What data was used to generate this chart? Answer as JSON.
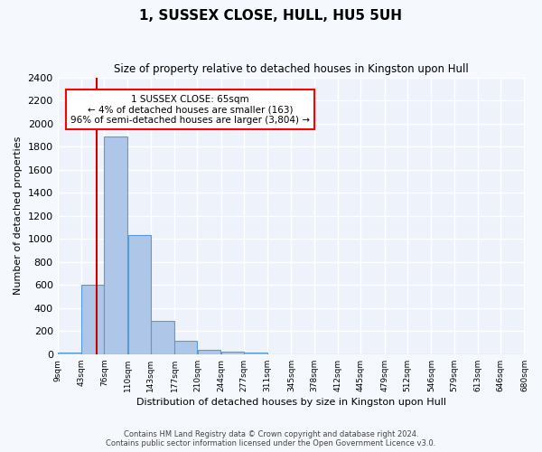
{
  "title": "1, SUSSEX CLOSE, HULL, HU5 5UH",
  "subtitle": "Size of property relative to detached houses in Kingston upon Hull",
  "xlabel": "Distribution of detached houses by size in Kingston upon Hull",
  "ylabel": "Number of detached properties",
  "footer_line1": "Contains HM Land Registry data © Crown copyright and database right 2024.",
  "footer_line2": "Contains public sector information licensed under the Open Government Licence v3.0.",
  "bar_color": "#aec6e8",
  "bar_edge_color": "#5b9bd5",
  "background_color": "#eef2fa",
  "grid_color": "#ffffff",
  "annotation_text": "1 SUSSEX CLOSE: 65sqm\n← 4% of detached houses are smaller (163)\n96% of semi-detached houses are larger (3,804) →",
  "property_line_x": 65,
  "property_line_color": "#cc0000",
  "bin_edges": [
    9,
    43,
    76,
    110,
    143,
    177,
    210,
    244,
    277,
    311,
    345,
    378,
    412,
    445,
    479,
    512,
    546,
    579,
    613,
    646,
    680
  ],
  "bin_labels": [
    "9sqm",
    "43sqm",
    "76sqm",
    "110sqm",
    "143sqm",
    "177sqm",
    "210sqm",
    "244sqm",
    "277sqm",
    "311sqm",
    "345sqm",
    "378sqm",
    "412sqm",
    "445sqm",
    "479sqm",
    "512sqm",
    "546sqm",
    "579sqm",
    "613sqm",
    "646sqm",
    "680sqm"
  ],
  "counts": [
    15,
    600,
    1890,
    1030,
    290,
    115,
    40,
    20,
    15,
    0,
    0,
    0,
    0,
    0,
    0,
    0,
    0,
    0,
    0,
    0
  ],
  "ylim": [
    0,
    2400
  ],
  "yticks": [
    0,
    200,
    400,
    600,
    800,
    1000,
    1200,
    1400,
    1600,
    1800,
    2000,
    2200,
    2400
  ]
}
